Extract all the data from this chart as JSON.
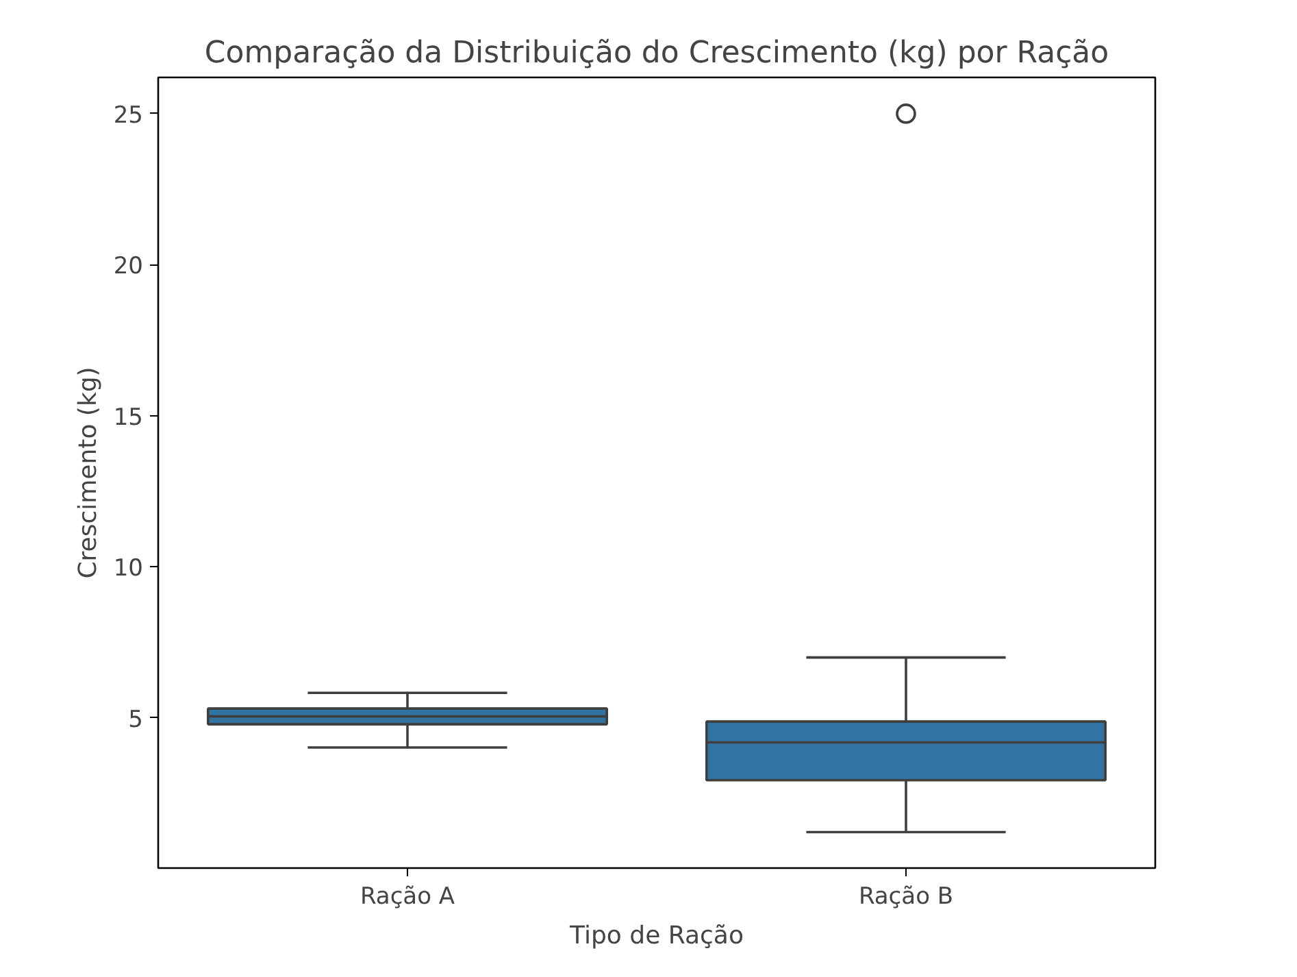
{
  "chart_data": {
    "type": "box",
    "title": "Comparação da Distribuição do Crescimento (kg) por Ração",
    "xlabel": "Tipo de Ração",
    "ylabel": "Crescimento (kg)",
    "categories": [
      "Ração A",
      "Ração B"
    ],
    "series": [
      {
        "color": "#3274a1",
        "boxes": [
          {
            "low": 4.02,
            "q1": 4.79,
            "median": 5.05,
            "q3": 5.31,
            "high": 5.83
          },
          {
            "low": 1.22,
            "q1": 2.94,
            "median": 4.19,
            "q3": 4.88,
            "high": 7.0,
            "outliers": [
              25.0
            ]
          }
        ]
      }
    ],
    "ylim": [
      0.03,
      26.2
    ],
    "yticks": [
      5,
      10,
      15,
      20,
      25
    ],
    "grid": false
  }
}
